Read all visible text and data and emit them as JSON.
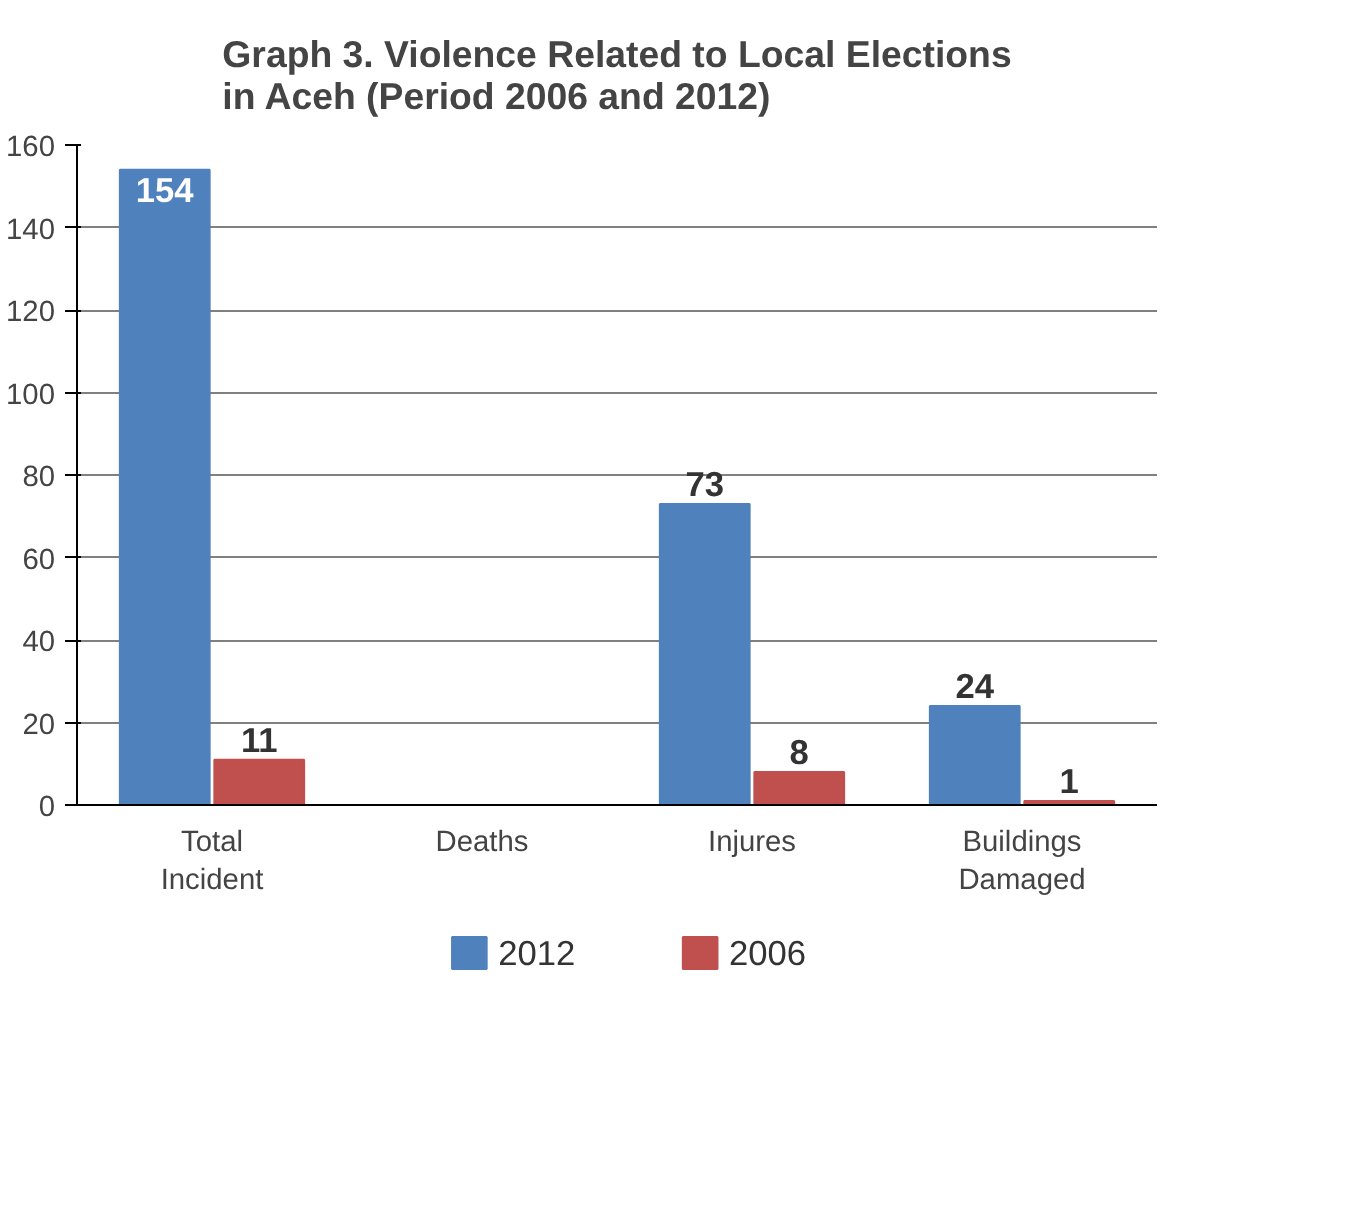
{
  "chart_data": {
    "type": "bar",
    "title": "Graph 3. Violence Related to Local Elections\nin Aceh (Period 2006 and 2012)",
    "categories": [
      "Total Incident",
      "Deaths",
      "Injures",
      "Buildings Damaged"
    ],
    "series": [
      {
        "name": "2012",
        "color": "#4f81bd",
        "values": [
          154,
          0,
          73,
          24
        ],
        "value_labels": [
          "154",
          null,
          "73",
          "24"
        ]
      },
      {
        "name": "2006",
        "color": "#c0504d",
        "values": [
          11,
          0,
          8,
          1
        ],
        "value_labels": [
          "11",
          null,
          "8",
          "1"
        ]
      }
    ],
    "ylim": [
      0,
      160
    ],
    "yticks": [
      0,
      20,
      40,
      60,
      80,
      100,
      120,
      140,
      160
    ],
    "grid": "y",
    "legend": "bottom"
  }
}
